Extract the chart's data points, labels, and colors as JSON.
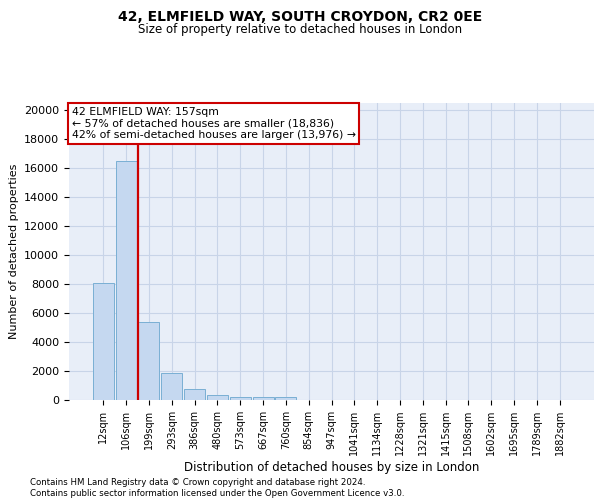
{
  "title_line1": "42, ELMFIELD WAY, SOUTH CROYDON, CR2 0EE",
  "title_line2": "Size of property relative to detached houses in London",
  "xlabel": "Distribution of detached houses by size in London",
  "ylabel": "Number of detached properties",
  "bar_labels": [
    "12sqm",
    "106sqm",
    "199sqm",
    "293sqm",
    "386sqm",
    "480sqm",
    "573sqm",
    "667sqm",
    "760sqm",
    "854sqm",
    "947sqm",
    "1041sqm",
    "1134sqm",
    "1228sqm",
    "1321sqm",
    "1415sqm",
    "1508sqm",
    "1602sqm",
    "1695sqm",
    "1789sqm",
    "1882sqm"
  ],
  "bar_values": [
    8050,
    16500,
    5350,
    1850,
    750,
    330,
    240,
    200,
    200,
    0,
    0,
    0,
    0,
    0,
    0,
    0,
    0,
    0,
    0,
    0,
    0
  ],
  "bar_color": "#c5d8f0",
  "bar_edge_color": "#7aafd4",
  "grid_color": "#c8d4e8",
  "background_color": "#e8eef8",
  "vline_x": 1.52,
  "vline_color": "#cc0000",
  "annotation_text": "42 ELMFIELD WAY: 157sqm\n← 57% of detached houses are smaller (18,836)\n42% of semi-detached houses are larger (13,976) →",
  "annotation_box_color": "#ffffff",
  "annotation_box_edge": "#cc0000",
  "ylim": [
    0,
    20500
  ],
  "yticks": [
    0,
    2000,
    4000,
    6000,
    8000,
    10000,
    12000,
    14000,
    16000,
    18000,
    20000
  ],
  "footer_line1": "Contains HM Land Registry data © Crown copyright and database right 2024.",
  "footer_line2": "Contains public sector information licensed under the Open Government Licence v3.0."
}
